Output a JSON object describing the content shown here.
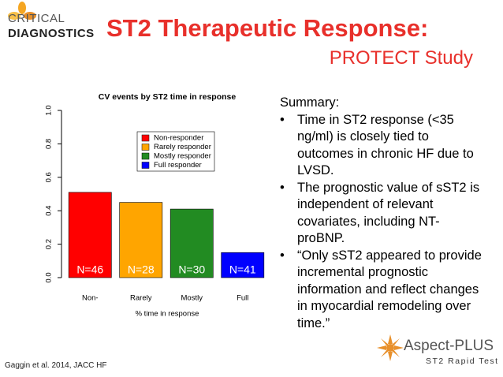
{
  "logo": {
    "line1": "CRITICAL",
    "line2": "DIAGNOSTICS"
  },
  "header": {
    "title": "ST2 Therapeutic Response:",
    "subtitle": "PROTECT Study"
  },
  "summary": {
    "heading": "Summary:",
    "bullets": [
      "Time in ST2 response (<35 ng/ml) is closely tied to outcomes in chronic HF due to LVSD.",
      "The prognostic value of sST2 is independent of relevant covariates, including NT-proBNP.",
      "“Only sST2 appeared to provide incremental prognostic information and reflect changes in myocardial remodeling over time.”"
    ]
  },
  "citation": "Gaggin et al. 2014, JACC HF",
  "product": {
    "name": "Aspect-PLUS",
    "tagline": "ST2 Rapid Test"
  },
  "chart_data": {
    "type": "bar",
    "title": "CV events by ST2 time in response",
    "x_label": "% time in response",
    "categories": [
      "Non-",
      "Rarely",
      "Mostly",
      "Full"
    ],
    "values": [
      0.51,
      0.45,
      0.41,
      0.15
    ],
    "colors": [
      "#ff0000",
      "#ffa500",
      "#228b22",
      "#0000ff"
    ],
    "bar_labels": [
      "N=46",
      "N=28",
      "N=30",
      "N=41"
    ],
    "legend": [
      "Non-responder",
      "Rarely responder",
      "Mostly responder",
      "Full responder"
    ],
    "ylim": [
      0,
      1.0
    ],
    "yticks": [
      {
        "value": 0,
        "label": "0.0"
      },
      0.2,
      0.4,
      0.6,
      0.8,
      {
        "value": 1,
        "label": "1.0"
      }
    ]
  }
}
